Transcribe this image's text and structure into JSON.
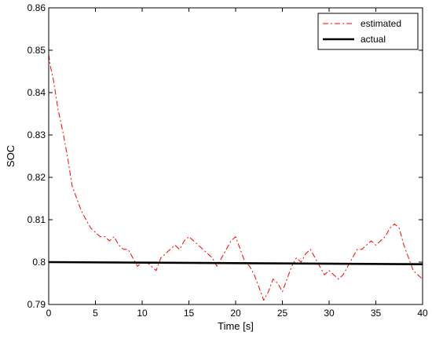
{
  "chart_data": {
    "type": "line",
    "title": "",
    "xlabel": "Time [s]",
    "ylabel": "SOC",
    "xlim": [
      0,
      40
    ],
    "ylim": [
      0.79,
      0.86
    ],
    "xticks": [
      0,
      5,
      10,
      15,
      20,
      25,
      30,
      35,
      40
    ],
    "yticks": [
      0.79,
      0.8,
      0.81,
      0.82,
      0.83,
      0.84,
      0.85,
      0.86
    ],
    "xtick_labels": [
      "0",
      "5",
      "10",
      "15",
      "20",
      "25",
      "30",
      "35",
      "40"
    ],
    "ytick_labels": [
      "0.79",
      "0.8",
      "0.81",
      "0.82",
      "0.83",
      "0.84",
      "0.85",
      "0.86"
    ],
    "grid": false,
    "legend_position": "top-right",
    "series": [
      {
        "name": "estimated",
        "color": "#ff0000",
        "style": "dash-dot",
        "x": [
          0,
          0.2,
          0.5,
          1,
          1.5,
          2,
          2.5,
          3,
          3.5,
          4,
          4.5,
          5,
          5.5,
          6,
          6.5,
          7,
          7.5,
          8,
          8.5,
          9,
          9.5,
          10,
          10.5,
          11,
          11.5,
          12,
          12.5,
          13,
          13.5,
          14,
          14.5,
          15,
          15.5,
          16,
          16.5,
          17,
          17.5,
          18,
          18.5,
          19,
          19.5,
          20,
          20.5,
          21,
          21.5,
          22,
          22.5,
          23,
          23.5,
          24,
          24.5,
          25,
          25.5,
          26,
          26.5,
          27,
          27.5,
          28,
          28.5,
          29,
          29.5,
          30,
          30.5,
          31,
          31.5,
          32,
          32.5,
          33,
          33.5,
          34,
          34.5,
          35,
          35.5,
          36,
          36.5,
          37,
          37.5,
          38,
          38.5,
          39,
          39.5,
          40
        ],
        "y": [
          0.849,
          0.846,
          0.843,
          0.836,
          0.831,
          0.825,
          0.818,
          0.815,
          0.812,
          0.81,
          0.808,
          0.807,
          0.806,
          0.806,
          0.805,
          0.806,
          0.804,
          0.803,
          0.803,
          0.801,
          0.799,
          0.8,
          0.8,
          0.799,
          0.798,
          0.801,
          0.802,
          0.803,
          0.804,
          0.803,
          0.805,
          0.806,
          0.805,
          0.804,
          0.803,
          0.802,
          0.801,
          0.799,
          0.801,
          0.803,
          0.805,
          0.806,
          0.803,
          0.8,
          0.799,
          0.797,
          0.794,
          0.791,
          0.793,
          0.796,
          0.795,
          0.793,
          0.796,
          0.799,
          0.801,
          0.8,
          0.802,
          0.803,
          0.801,
          0.799,
          0.797,
          0.798,
          0.797,
          0.796,
          0.797,
          0.799,
          0.801,
          0.803,
          0.803,
          0.804,
          0.805,
          0.804,
          0.805,
          0.806,
          0.808,
          0.809,
          0.808,
          0.804,
          0.801,
          0.798,
          0.797,
          0.796
        ]
      },
      {
        "name": "actual",
        "color": "#000000",
        "style": "solid",
        "x": [
          0,
          40
        ],
        "y": [
          0.8,
          0.7995
        ]
      }
    ]
  }
}
